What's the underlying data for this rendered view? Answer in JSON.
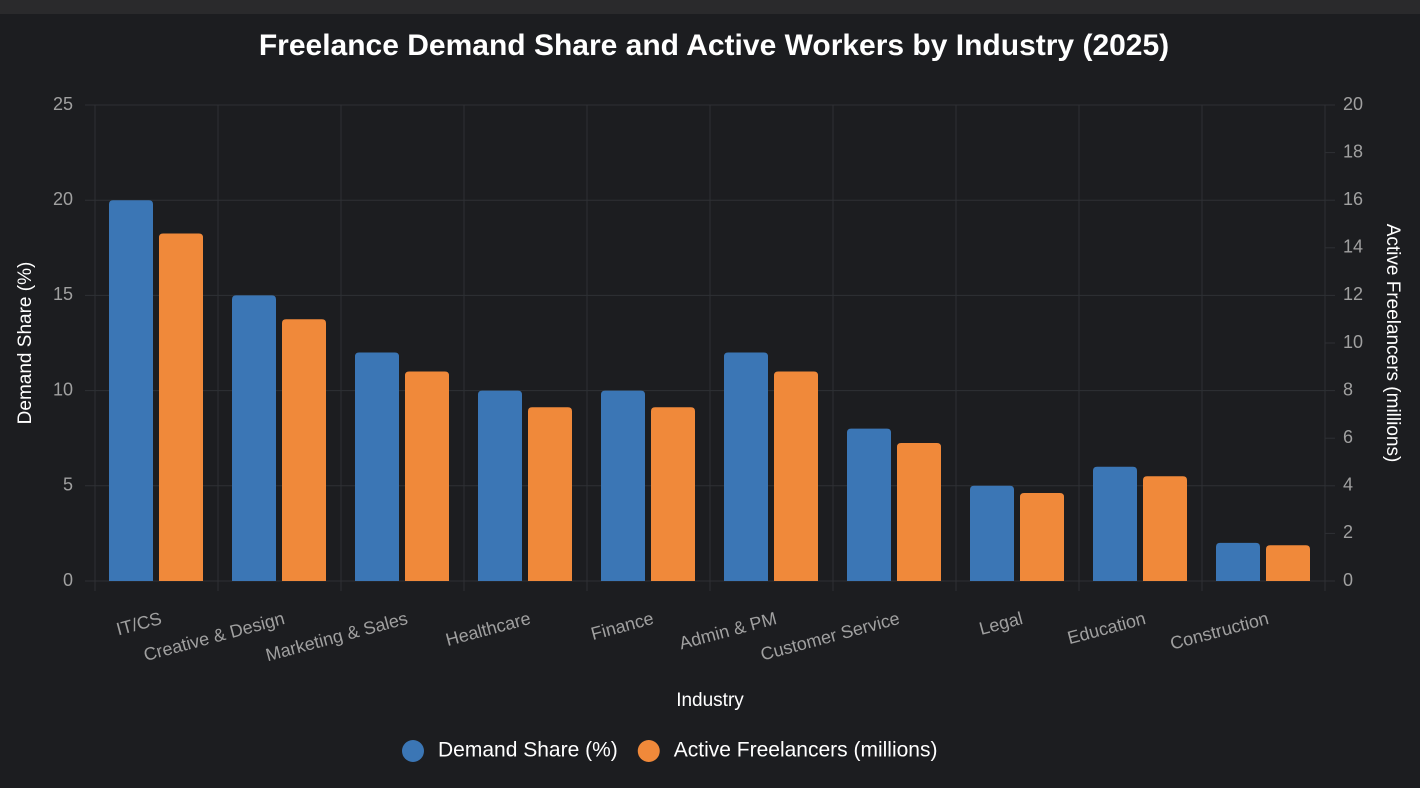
{
  "chart_data": {
    "type": "bar",
    "title": "Freelance Demand Share and Active Workers by Industry (2025)",
    "x_label": "Industry",
    "y_label": "Demand Share (%)",
    "y2_label": "Active Freelancers (millions)",
    "categories": [
      "IT/CS",
      "Creative & Design",
      "Marketing & Sales",
      "Healthcare",
      "Finance",
      "Admin & PM",
      "Customer Service",
      "Legal",
      "Education",
      "Construction"
    ],
    "series": [
      {
        "name": "Demand Share (%)",
        "color": "#3b76b5",
        "values": [
          20,
          15,
          12,
          10,
          10,
          12,
          8,
          5,
          6,
          2
        ]
      },
      {
        "name": "Active Freelancers (millions)",
        "color": "#f0893a",
        "axis": "y2",
        "values": [
          14.6,
          11,
          8.8,
          7.3,
          7.3,
          8.8,
          5.8,
          3.7,
          4.4,
          1.5
        ]
      }
    ],
    "ylim": [
      0,
      25
    ],
    "yticks": [
      0,
      5,
      10,
      15,
      20,
      25
    ],
    "y2lim": [
      0,
      20
    ],
    "y2ticks": [
      0,
      2,
      4,
      6,
      8,
      10,
      12,
      14,
      16,
      18,
      20
    ],
    "grid": true,
    "legend": "bottom"
  }
}
